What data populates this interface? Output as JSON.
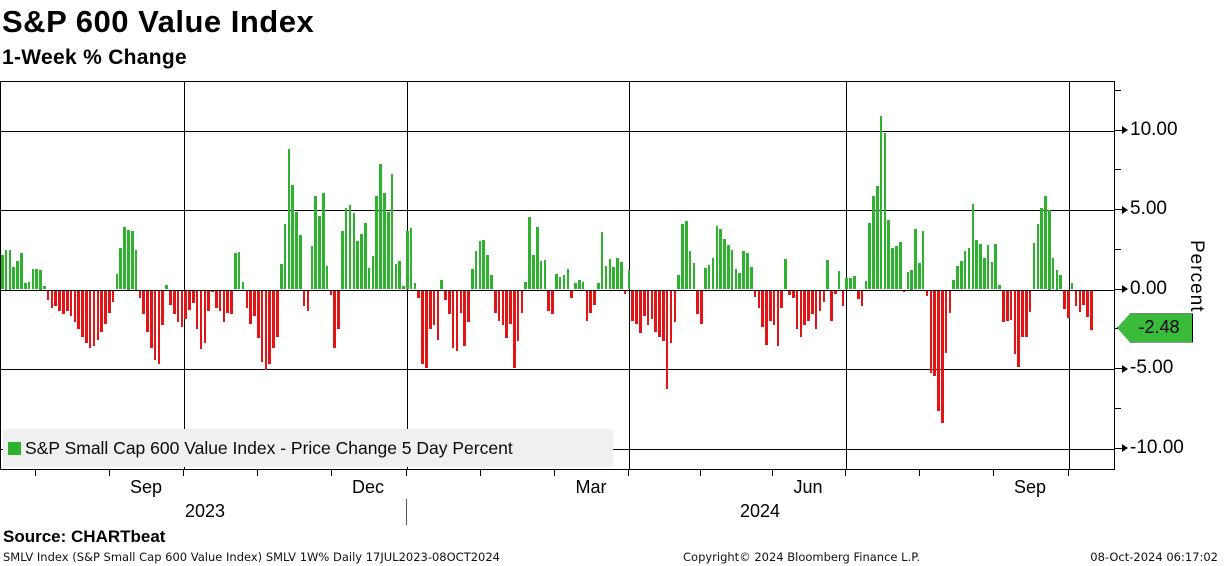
{
  "title": "S&P 600 Value Index",
  "subtitle": "1-Week % Change",
  "legend": {
    "label": "S&P Small Cap 600 Value Index - Price Change 5 Day Percent"
  },
  "source": "Source: CHARTbeat",
  "footer": {
    "left": "SMLV Index (S&P Small Cap 600 Value Index) SMLV 1W%  Daily 17JUL2023-08OCT2024",
    "center": "Copyright© 2024 Bloomberg Finance L.P.",
    "right": "08-Oct-2024 06:17:02"
  },
  "y_axis": {
    "label": "Percent",
    "tick_labels": [
      "10.00",
      "5.00",
      "0.00",
      "-5.00",
      "-10.00"
    ],
    "tick_values": [
      10,
      5,
      0,
      -5,
      -10
    ],
    "minor_tick_values": [
      12.5,
      7.5,
      2.5,
      -2.5,
      -7.5
    ],
    "range_top": 13.0,
    "range_bottom": -11.4
  },
  "x_axis": {
    "month_labels": [
      "Sep",
      "Dec",
      "Mar",
      "Jun",
      "Sep"
    ],
    "year_labels": [
      "2023",
      "2024"
    ]
  },
  "last_value_tag": {
    "text": "-2.48",
    "value": -2.48
  },
  "colors": {
    "positive": "#2db22d",
    "negative": "#e41414",
    "tag": "#3bbb3b",
    "legend_bg": "#f0f0f0"
  },
  "chart_data": {
    "type": "bar",
    "title": "S&P 600 Value Index",
    "subtitle": "1-Week % Change",
    "ylabel": "Percent",
    "ylim": [
      -11.4,
      13.0
    ],
    "grid": true,
    "legend_position": "bottom-left",
    "x_range": [
      "17JUL2023",
      "08OCT2024"
    ],
    "x_frequency": "daily",
    "x_gridlines": [
      "01OCT2023",
      "01JAN2024",
      "01APR2024",
      "01JUL2024",
      "01OCT2024"
    ],
    "last_value": -2.48,
    "series": [
      {
        "name": "S&P Small Cap 600 Value Index - Price Change 5 Day Percent",
        "values": [
          2.2,
          2.5,
          2.5,
          1.4,
          1.8,
          2.3,
          0.4,
          0.5,
          1.3,
          1.3,
          1.25,
          0.2,
          -0.6,
          -1.1,
          -1.0,
          -1.3,
          -1.5,
          -1.3,
          -1.6,
          -2.0,
          -2.4,
          -2.9,
          -3.3,
          -3.6,
          -3.5,
          -3.1,
          -2.6,
          -2.1,
          -1.4,
          -0.7,
          1.0,
          2.6,
          3.95,
          3.75,
          3.7,
          2.5,
          -0.5,
          -1.5,
          -2.6,
          -3.6,
          -4.4,
          -4.65,
          -2.2,
          0.3,
          -0.9,
          -1.5,
          -2.0,
          -2.3,
          -1.8,
          -1.2,
          -0.8,
          -2.4,
          -3.7,
          -3.3,
          -1.3,
          -0.1,
          -1.1,
          -1.3,
          -2.0,
          -1.4,
          -1.5,
          2.3,
          2.35,
          0.5,
          -1.1,
          -2.1,
          -1.6,
          -3.0,
          -4.5,
          -5.0,
          -4.6,
          -3.6,
          -2.9,
          1.6,
          4.15,
          8.85,
          6.6,
          4.9,
          3.4,
          -1.0,
          -1.3,
          2.75,
          5.85,
          4.6,
          6.1,
          1.5,
          -0.3,
          -3.6,
          -2.4,
          3.7,
          5.1,
          5.3,
          4.8,
          3.05,
          3.5,
          4.2,
          1.35,
          2.1,
          5.9,
          7.9,
          6.1,
          4.9,
          7.25,
          1.6,
          1.8,
          0.2,
          3.7,
          3.85,
          0.4,
          -0.5,
          -4.6,
          -4.9,
          -2.4,
          -2.2,
          -3.1,
          0.6,
          -0.6,
          -1.5,
          -3.6,
          -3.8,
          -1.4,
          -3.5,
          -2.0,
          1.3,
          2.4,
          3.05,
          3.1,
          2.2,
          0.9,
          -1.4,
          -1.9,
          -2.2,
          -3.0,
          -2.1,
          -4.9,
          -3.2,
          -1.4,
          0.5,
          4.55,
          2.2,
          3.9,
          1.8,
          1.85,
          -1.3,
          -1.5,
          1.0,
          0.8,
          0.9,
          1.3,
          -0.5,
          0.4,
          0.6,
          0.5,
          -1.9,
          -1.4,
          -0.9,
          0.4,
          3.6,
          1.5,
          1.9,
          1.4,
          2.0,
          1.7,
          -0.2,
          1.2,
          -1.9,
          -2.1,
          -2.7,
          -1.6,
          -2.2,
          -1.8,
          -2.6,
          -2.9,
          -3.2,
          -6.2,
          -3.3,
          -2.0,
          0.9,
          4.15,
          4.3,
          2.45,
          1.65,
          -1.45,
          -2.1,
          1.35,
          1.55,
          2.0,
          4.0,
          3.8,
          3.15,
          2.8,
          2.5,
          1.3,
          1.05,
          2.4,
          2.3,
          1.4,
          -0.4,
          -1.1,
          -2.3,
          -3.4,
          -1.9,
          -2.2,
          -3.5,
          -1.1,
          1.9,
          -0.3,
          -0.5,
          -2.4,
          -2.9,
          -2.2,
          -1.9,
          -1.5,
          -2.4,
          -1.3,
          -0.7,
          1.85,
          -1.9,
          -0.25,
          1.15,
          -1.0,
          0.7,
          0.75,
          0.85,
          -0.55,
          -0.95,
          0.55,
          4.2,
          5.9,
          6.5,
          10.9,
          9.85,
          4.4,
          2.6,
          2.75,
          3.0,
          -0.1,
          1.1,
          1.25,
          3.8,
          1.65,
          3.7,
          -0.35,
          -5.2,
          -5.4,
          -7.6,
          -8.35,
          -3.9,
          -1.4,
          0.6,
          1.5,
          1.8,
          2.4,
          2.6,
          5.35,
          3.1,
          2.85,
          1.95,
          2.8,
          1.7,
          2.85,
          0.3,
          -2.0,
          -1.9,
          -1.85,
          -4.0,
          -4.8,
          -2.95,
          -2.9,
          -1.35,
          2.95,
          4.15,
          5.15,
          5.9,
          5.0,
          2.0,
          1.25,
          0.9,
          -1.15,
          -1.75,
          0.4,
          -1.0,
          -1.35,
          -0.9,
          -1.65,
          -2.48
        ]
      }
    ]
  }
}
